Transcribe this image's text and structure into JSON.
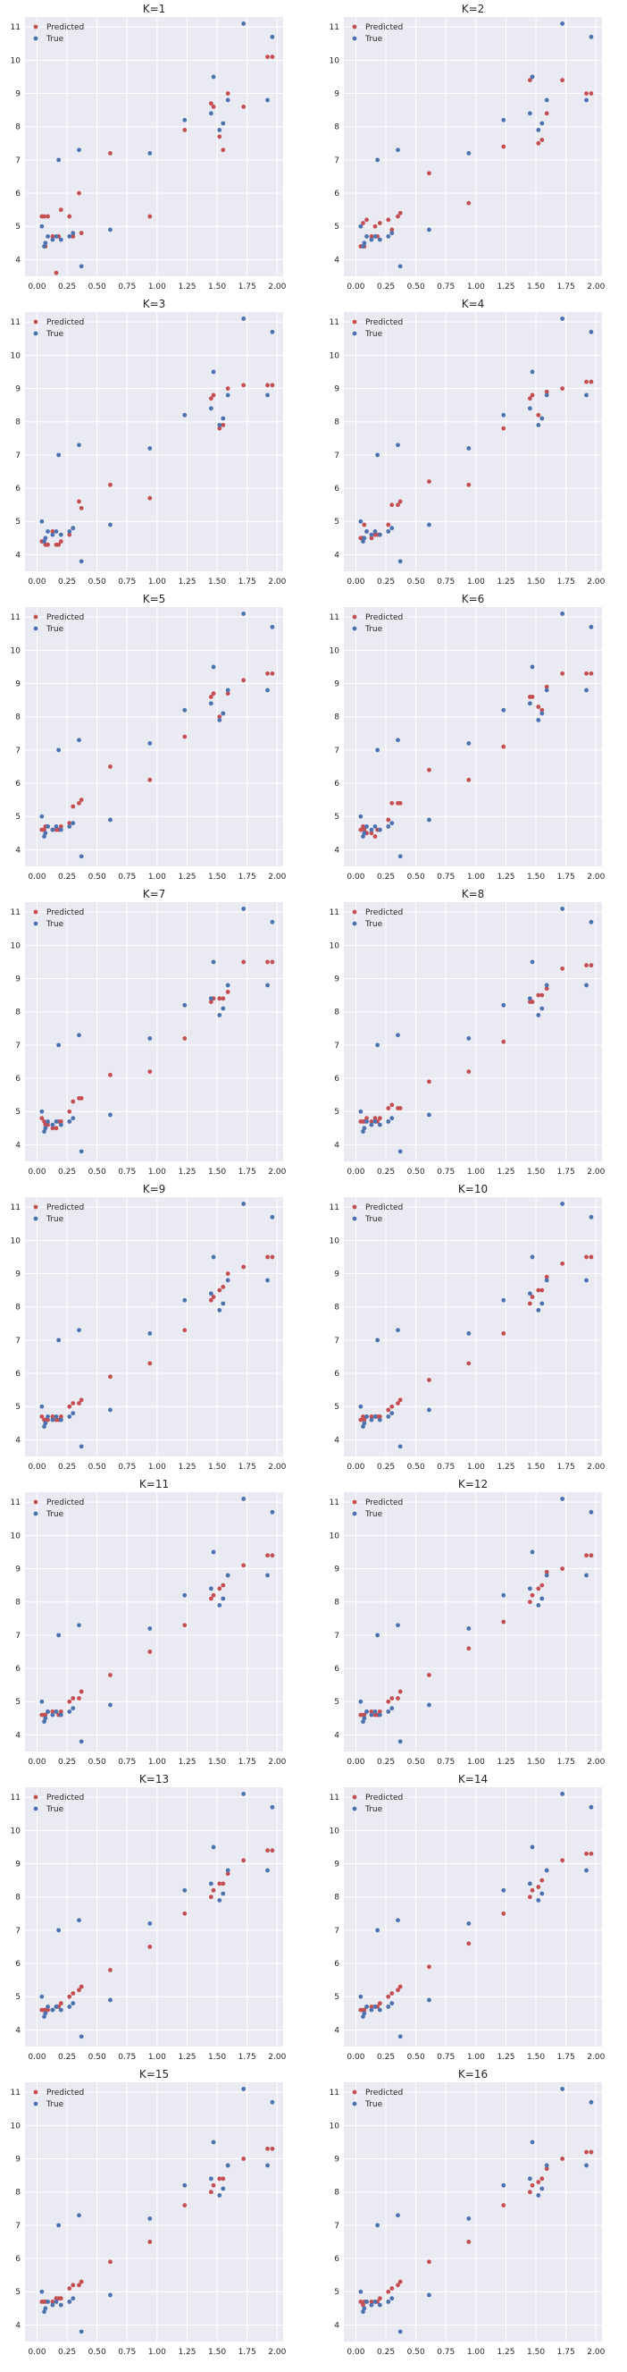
{
  "chart_data": {
    "type": "scatter",
    "layout": {
      "rows": 8,
      "cols": 2
    },
    "colors": {
      "predicted": "#c44e52",
      "true": "#4c72b0",
      "axes_bg": "#eaeaf2",
      "grid": "#ffffff"
    },
    "grid": true,
    "legend_position": "top-left",
    "legend": [
      "Predicted",
      "True"
    ],
    "xlim": [
      -0.1,
      2.05
    ],
    "ylim": [
      3.5,
      11.3
    ],
    "xticks": [
      0.0,
      0.25,
      0.5,
      0.75,
      1.0,
      1.25,
      1.5,
      1.75,
      2.0
    ],
    "xtick_labels": [
      "0.00",
      "0.25",
      "0.50",
      "0.75",
      "1.00",
      "1.25",
      "1.50",
      "1.75",
      "2.00"
    ],
    "yticks": [
      4,
      5,
      6,
      7,
      8,
      9,
      10,
      11
    ],
    "ytick_labels": [
      "4",
      "5",
      "6",
      "7",
      "8",
      "9",
      "10",
      "11"
    ],
    "x": [
      0.04,
      0.06,
      0.07,
      0.09,
      0.13,
      0.16,
      0.18,
      0.2,
      0.27,
      0.3,
      0.35,
      0.37,
      0.61,
      0.94,
      1.23,
      1.45,
      1.47,
      1.52,
      1.55,
      1.59,
      1.72,
      1.92,
      1.96
    ],
    "true_y": [
      5.0,
      4.4,
      4.5,
      4.7,
      4.6,
      4.7,
      7.0,
      4.6,
      4.7,
      4.8,
      7.3,
      3.8,
      4.9,
      7.2,
      8.2,
      8.4,
      9.5,
      7.9,
      8.1,
      8.8,
      11.1,
      8.8,
      10.7
    ],
    "panels": [
      {
        "title": "K=1",
        "predicted": [
          5.3,
          5.3,
          4.4,
          5.3,
          4.7,
          3.6,
          4.7,
          5.5,
          5.3,
          4.7,
          6.0,
          4.8,
          7.2,
          5.3,
          7.9,
          8.7,
          8.6,
          7.7,
          7.3,
          9.0,
          8.6,
          10.1,
          10.1
        ]
      },
      {
        "title": "K=2",
        "predicted": [
          4.4,
          5.1,
          4.4,
          5.2,
          4.7,
          5.0,
          4.7,
          5.1,
          5.2,
          4.9,
          5.3,
          5.4,
          6.6,
          5.7,
          7.4,
          9.4,
          9.5,
          7.5,
          7.6,
          8.4,
          9.4,
          9.0,
          9.0
        ]
      },
      {
        "title": "K=3",
        "predicted": [
          4.4,
          4.4,
          4.3,
          4.3,
          4.7,
          4.3,
          4.3,
          4.4,
          4.6,
          4.8,
          5.6,
          5.4,
          6.1,
          5.7,
          8.2,
          8.7,
          8.8,
          7.8,
          7.9,
          9.0,
          9.1,
          9.1,
          9.1
        ]
      },
      {
        "title": "K=4",
        "predicted": [
          4.5,
          4.5,
          4.9,
          4.7,
          4.5,
          4.6,
          4.6,
          4.6,
          4.9,
          5.5,
          5.5,
          5.6,
          6.2,
          6.1,
          7.8,
          8.7,
          8.8,
          8.2,
          8.1,
          8.9,
          9.0,
          9.2,
          9.2
        ]
      },
      {
        "title": "K=5",
        "predicted": [
          4.6,
          4.6,
          4.7,
          4.7,
          4.6,
          4.6,
          4.6,
          4.7,
          4.8,
          5.3,
          5.4,
          5.5,
          6.5,
          6.1,
          7.4,
          8.6,
          8.7,
          8.0,
          8.1,
          8.7,
          9.1,
          9.3,
          9.3
        ]
      },
      {
        "title": "K=6",
        "predicted": [
          4.6,
          4.7,
          4.6,
          4.5,
          4.5,
          4.4,
          4.6,
          4.6,
          4.9,
          5.4,
          5.4,
          5.4,
          6.4,
          6.1,
          7.1,
          8.6,
          8.6,
          8.3,
          8.2,
          8.9,
          9.3,
          9.3,
          9.3
        ]
      },
      {
        "title": "K=7",
        "predicted": [
          4.8,
          4.7,
          4.6,
          4.6,
          4.5,
          4.5,
          4.7,
          4.7,
          5.0,
          5.3,
          5.4,
          5.4,
          6.1,
          6.2,
          7.2,
          8.3,
          8.4,
          8.4,
          8.4,
          8.6,
          9.5,
          9.5,
          9.5
        ]
      },
      {
        "title": "K=8",
        "predicted": [
          4.7,
          4.7,
          4.7,
          4.8,
          4.7,
          4.8,
          4.7,
          4.8,
          5.1,
          5.2,
          5.1,
          5.1,
          5.9,
          6.2,
          7.1,
          8.3,
          8.3,
          8.5,
          8.5,
          8.7,
          9.3,
          9.4,
          9.4
        ]
      },
      {
        "title": "K=9",
        "predicted": [
          4.7,
          4.6,
          4.6,
          4.6,
          4.7,
          4.6,
          4.6,
          4.7,
          5.0,
          5.1,
          5.1,
          5.2,
          5.9,
          6.3,
          7.3,
          8.2,
          8.3,
          8.5,
          8.6,
          9.0,
          9.2,
          9.5,
          9.5
        ]
      },
      {
        "title": "K=10",
        "predicted": [
          4.6,
          4.7,
          4.6,
          4.7,
          4.7,
          4.7,
          4.7,
          4.7,
          4.9,
          5.0,
          5.1,
          5.2,
          5.8,
          6.3,
          7.2,
          8.1,
          8.3,
          8.5,
          8.5,
          8.9,
          9.3,
          9.5,
          9.5
        ]
      },
      {
        "title": "K=11",
        "predicted": [
          4.6,
          4.6,
          4.6,
          4.7,
          4.7,
          4.7,
          4.6,
          4.7,
          5.0,
          5.1,
          5.1,
          5.3,
          5.8,
          6.5,
          7.3,
          8.1,
          8.2,
          8.4,
          8.5,
          8.8,
          9.1,
          9.4,
          9.4
        ]
      },
      {
        "title": "K=12",
        "predicted": [
          4.6,
          4.6,
          4.6,
          4.7,
          4.7,
          4.6,
          4.6,
          4.7,
          5.0,
          5.1,
          5.1,
          5.3,
          5.8,
          6.6,
          7.4,
          8.0,
          8.2,
          8.4,
          8.5,
          8.9,
          9.0,
          9.4,
          9.4
        ]
      },
      {
        "title": "K=13",
        "predicted": [
          4.6,
          4.6,
          4.6,
          4.6,
          4.6,
          4.7,
          4.7,
          4.8,
          5.0,
          5.1,
          5.2,
          5.3,
          5.8,
          6.5,
          7.5,
          8.0,
          8.2,
          8.4,
          8.4,
          8.7,
          9.1,
          9.4,
          9.4
        ]
      },
      {
        "title": "K=14",
        "predicted": [
          4.6,
          4.6,
          4.6,
          4.7,
          4.7,
          4.7,
          4.7,
          4.8,
          5.0,
          5.1,
          5.2,
          5.3,
          5.9,
          6.6,
          7.5,
          8.0,
          8.2,
          8.3,
          8.5,
          8.8,
          9.1,
          9.3,
          9.3
        ]
      },
      {
        "title": "K=15",
        "predicted": [
          4.7,
          4.7,
          4.7,
          4.7,
          4.7,
          4.8,
          4.8,
          4.8,
          5.1,
          5.2,
          5.2,
          5.3,
          5.9,
          6.5,
          7.6,
          8.0,
          8.2,
          8.4,
          8.4,
          8.8,
          9.0,
          9.3,
          9.3
        ]
      },
      {
        "title": "K=16",
        "predicted": [
          4.7,
          4.6,
          4.7,
          4.7,
          4.7,
          4.7,
          4.7,
          4.8,
          5.0,
          5.1,
          5.2,
          5.3,
          5.9,
          6.5,
          7.6,
          8.0,
          8.2,
          8.3,
          8.4,
          8.7,
          9.0,
          9.2,
          9.2
        ]
      }
    ]
  }
}
